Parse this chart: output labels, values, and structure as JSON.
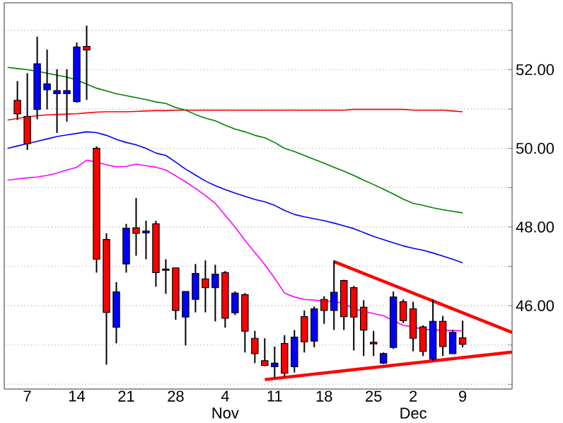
{
  "chart_data": {
    "type": "candlestick",
    "categories": [
      null,
      null,
      "7",
      null,
      null,
      null,
      null,
      "14",
      null,
      null,
      null,
      null,
      "21",
      null,
      null,
      null,
      null,
      "28",
      null,
      null,
      null,
      null,
      "4 Nov",
      null,
      null,
      null,
      null,
      "11",
      null,
      null,
      null,
      null,
      "18",
      null,
      null,
      null,
      null,
      "25",
      null,
      null,
      null,
      "2 Dec",
      null,
      null,
      null,
      null,
      "9",
      null,
      null,
      null,
      null,
      null
    ],
    "ohlc": [
      null,
      [
        51.22,
        51.71,
        50.72,
        50.88
      ],
      [
        50.81,
        51.91,
        49.96,
        50.12
      ],
      [
        50.99,
        52.84,
        50.74,
        52.15
      ],
      [
        51.49,
        52.51,
        50.99,
        51.64
      ],
      [
        51.39,
        52.01,
        50.39,
        51.47
      ],
      [
        51.39,
        52.01,
        50.68,
        51.47
      ],
      [
        51.19,
        52.69,
        51.16,
        52.58
      ],
      [
        52.59,
        53.12,
        51.23,
        52.5
      ],
      [
        50.0,
        50.05,
        46.84,
        47.18
      ],
      [
        47.68,
        47.84,
        44.5,
        45.83
      ],
      [
        45.45,
        46.6,
        45.04,
        46.35
      ],
      [
        47.06,
        48.08,
        46.84,
        47.97
      ],
      [
        47.98,
        48.74,
        47.27,
        47.84
      ],
      [
        47.85,
        48.16,
        47.18,
        47.9
      ],
      [
        48.08,
        48.16,
        46.48,
        46.84
      ],
      [
        46.93,
        47.18,
        46.3,
        46.9
      ],
      [
        46.96,
        46.97,
        45.64,
        45.88
      ],
      [
        45.71,
        46.36,
        44.99,
        46.36
      ],
      [
        46.16,
        47.06,
        45.83,
        46.82
      ],
      [
        46.68,
        47.15,
        45.83,
        46.46
      ],
      [
        46.46,
        47.04,
        45.6,
        46.8
      ],
      [
        46.84,
        46.88,
        45.44,
        45.68
      ],
      [
        45.82,
        46.36,
        45.76,
        46.32
      ],
      [
        46.28,
        46.32,
        44.81,
        45.35
      ],
      [
        45.17,
        45.36,
        44.54,
        44.78
      ],
      [
        44.6,
        45.17,
        44.46,
        44.48
      ],
      [
        44.45,
        44.96,
        44.18,
        44.54
      ],
      [
        45.04,
        45.25,
        44.2,
        44.28
      ],
      [
        44.45,
        45.38,
        44.3,
        45.2
      ],
      [
        45.72,
        45.88,
        44.81,
        45.08
      ],
      [
        45.1,
        45.98,
        44.94,
        45.92
      ],
      [
        46.16,
        46.24,
        45.54,
        45.88
      ],
      [
        45.88,
        47.15,
        45.38,
        46.34
      ],
      [
        46.64,
        46.66,
        45.38,
        45.72
      ],
      [
        46.46,
        46.5,
        44.86,
        45.71
      ],
      [
        45.96,
        46.14,
        44.72,
        45.38
      ],
      [
        45.07,
        45.36,
        44.72,
        45.03
      ],
      [
        44.54,
        44.81,
        44.52,
        44.78
      ],
      [
        44.94,
        46.36,
        44.9,
        46.22
      ],
      [
        46.1,
        46.16,
        45.56,
        45.62
      ],
      [
        45.92,
        46.1,
        44.84,
        45.17
      ],
      [
        45.46,
        45.5,
        44.72,
        44.84
      ],
      [
        44.64,
        46.16,
        44.6,
        45.6
      ],
      [
        45.6,
        45.74,
        44.72,
        44.96
      ],
      [
        44.78,
        45.38,
        44.78,
        45.32
      ],
      [
        45.18,
        45.62,
        44.94,
        45.02
      ],
      null,
      null,
      null,
      null,
      null
    ],
    "colors": [
      null,
      "#ff0000",
      "#ff0000",
      "#0000ff",
      "#0000ff",
      "#0000ff",
      "#0000ff",
      "#0000ff",
      "#ff0000",
      "#ff0000",
      "#ff0000",
      "#0000ff",
      "#0000ff",
      "#ff0000",
      "#0000ff",
      "#ff0000",
      "#ff0000",
      "#ff0000",
      "#0000ff",
      "#0000ff",
      "#ff0000",
      "#0000ff",
      "#ff0000",
      "#0000ff",
      "#ff0000",
      "#ff0000",
      "#ff0000",
      "#0000ff",
      "#ff0000",
      "#0000ff",
      "#ff0000",
      "#0000ff",
      "#ff0000",
      "#0000ff",
      "#ff0000",
      "#ff0000",
      "#ff0000",
      "#ff0000",
      "#0000ff",
      "#0000ff",
      "#ff0000",
      "#ff0000",
      "#ff0000",
      "#0000ff",
      "#ff0000",
      "#0000ff",
      "#ff0000",
      null,
      null,
      null,
      null,
      null
    ],
    "series": [
      {
        "type": "line",
        "color": "#ff0000",
        "values": [
          50.72,
          50.76,
          50.8,
          50.83,
          50.85,
          50.86,
          50.87,
          50.88,
          50.9,
          50.92,
          50.93,
          50.93,
          50.93,
          50.94,
          50.95,
          50.96,
          50.96,
          50.97,
          50.97,
          50.97,
          50.97,
          50.97,
          50.97,
          50.97,
          50.97,
          50.97,
          50.97,
          50.97,
          50.97,
          50.97,
          50.97,
          50.97,
          50.97,
          50.97,
          50.97,
          50.99,
          50.99,
          50.99,
          50.99,
          50.99,
          50.99,
          50.97,
          50.97,
          50.97,
          50.97,
          50.95,
          50.93,
          null,
          null,
          null,
          null,
          null
        ]
      },
      {
        "type": "line",
        "color": "#008000",
        "values": [
          52.06,
          52.03,
          52.0,
          51.96,
          51.91,
          51.86,
          51.81,
          51.74,
          51.63,
          51.53,
          51.46,
          51.39,
          51.34,
          51.29,
          51.24,
          51.18,
          51.14,
          51.04,
          50.97,
          50.86,
          50.77,
          50.7,
          50.59,
          50.49,
          50.42,
          50.33,
          50.27,
          50.15,
          50.0,
          49.92,
          49.82,
          49.72,
          49.62,
          49.52,
          49.42,
          49.31,
          49.19,
          49.08,
          48.96,
          48.84,
          48.71,
          48.6,
          48.55,
          48.49,
          48.44,
          48.4,
          48.36,
          null,
          null,
          null,
          null,
          null
        ]
      },
      {
        "type": "line",
        "color": "#0000ff",
        "values": [
          50.0,
          50.06,
          50.12,
          50.18,
          50.24,
          50.3,
          50.34,
          50.38,
          50.42,
          50.4,
          50.33,
          50.23,
          50.15,
          50.09,
          50.0,
          49.88,
          49.82,
          49.65,
          49.47,
          49.32,
          49.17,
          49.05,
          48.95,
          48.86,
          48.78,
          48.7,
          48.64,
          48.55,
          48.42,
          48.32,
          48.26,
          48.21,
          48.16,
          48.1,
          48.03,
          47.96,
          47.86,
          47.76,
          47.68,
          47.6,
          47.52,
          47.46,
          47.41,
          47.34,
          47.26,
          47.18,
          47.09,
          null,
          null,
          null,
          null,
          null
        ]
      },
      {
        "type": "line",
        "color": "#ff00ff",
        "values": [
          49.19,
          49.22,
          49.25,
          49.27,
          49.31,
          49.37,
          49.45,
          49.52,
          49.7,
          49.65,
          49.58,
          49.53,
          49.54,
          49.6,
          49.56,
          49.52,
          49.45,
          49.3,
          49.15,
          48.98,
          48.8,
          48.6,
          48.3,
          48.0,
          47.66,
          47.35,
          47.05,
          46.7,
          46.32,
          46.22,
          46.16,
          46.14,
          46.12,
          46.11,
          46.05,
          45.92,
          45.86,
          45.8,
          45.74,
          45.62,
          45.5,
          45.46,
          45.4,
          45.38,
          45.38,
          45.37,
          45.36,
          null,
          null,
          null,
          null,
          null
        ]
      },
      {
        "type": "line",
        "color": "#ff0000",
        "values": [
          null,
          null,
          null,
          null,
          null,
          null,
          null,
          null,
          null,
          null,
          null,
          null,
          null,
          null,
          null,
          null,
          null,
          null,
          null,
          null,
          null,
          null,
          null,
          null,
          null,
          null,
          null,
          null,
          null,
          null,
          null,
          null,
          null,
          47.12,
          null,
          null,
          null,
          null,
          null,
          null,
          null,
          null,
          null,
          null,
          null,
          null,
          null,
          null,
          null,
          null,
          null,
          45.32
        ]
      },
      {
        "type": "line",
        "color": "#ff0000",
        "values": [
          null,
          null,
          null,
          null,
          null,
          null,
          null,
          null,
          null,
          null,
          null,
          null,
          null,
          null,
          null,
          null,
          null,
          null,
          null,
          null,
          null,
          null,
          null,
          null,
          null,
          null,
          44.12,
          null,
          null,
          null,
          null,
          null,
          null,
          null,
          null,
          null,
          null,
          null,
          null,
          null,
          null,
          null,
          null,
          null,
          null,
          null,
          null,
          null,
          null,
          null,
          null,
          44.82
        ]
      }
    ],
    "ylim": [
      43.88,
      53.7
    ],
    "yticks": [
      {
        "value": 44,
        "label": null
      },
      {
        "value": 45,
        "label": null
      },
      {
        "value": 46,
        "label": "46.00"
      },
      {
        "value": 47,
        "label": null
      },
      {
        "value": 48,
        "label": "48.00"
      },
      {
        "value": 49,
        "label": null
      },
      {
        "value": 50,
        "label": "50.00"
      },
      {
        "value": 51,
        "label": null
      },
      {
        "value": 52,
        "label": "52.00"
      },
      {
        "value": 53,
        "label": null
      }
    ],
    "grid": "y"
  }
}
